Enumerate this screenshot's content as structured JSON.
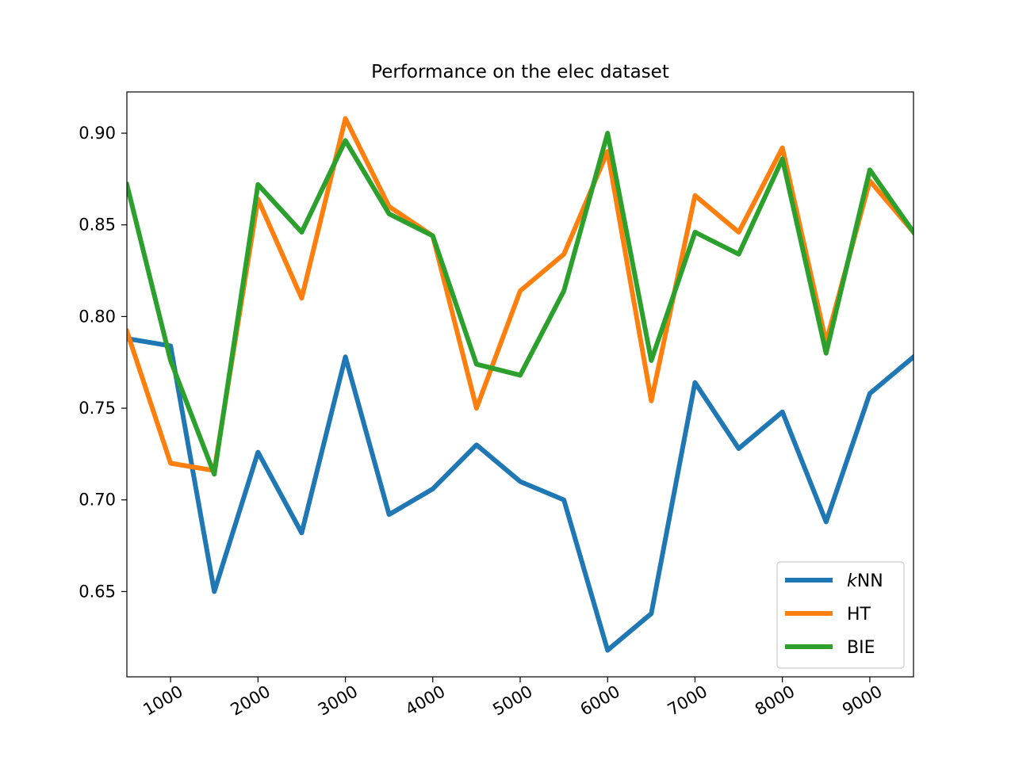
{
  "chart_data": {
    "type": "line",
    "title": "Performance on the elec dataset",
    "xlabel": "",
    "ylabel": "",
    "xlim": [
      500,
      9500
    ],
    "ylim": [
      0.6035,
      0.9225
    ],
    "x_ticks": [
      1000,
      2000,
      3000,
      4000,
      5000,
      6000,
      7000,
      8000,
      9000
    ],
    "x_tick_labels": [
      "1000",
      "2000",
      "3000",
      "4000",
      "5000",
      "6000",
      "7000",
      "8000",
      "9000"
    ],
    "y_ticks": [
      0.65,
      0.7,
      0.75,
      0.8,
      0.85,
      0.9
    ],
    "y_tick_labels": [
      "0.65",
      "0.70",
      "0.75",
      "0.80",
      "0.85",
      "0.90"
    ],
    "grid": false,
    "legend_position": "lower-right",
    "x": [
      500,
      1000,
      1500,
      2000,
      2500,
      3000,
      3500,
      4000,
      4500,
      5000,
      5500,
      6000,
      6500,
      7000,
      7500,
      8000,
      8500,
      9000,
      9500
    ],
    "series": [
      {
        "name": "kNN",
        "name_prefix": "k",
        "name_suffix": "NN",
        "color": "#1f77b4",
        "values": [
          0.788,
          0.784,
          0.65,
          0.726,
          0.682,
          0.778,
          0.692,
          0.706,
          0.73,
          0.71,
          0.7,
          0.618,
          0.638,
          0.764,
          0.728,
          0.748,
          0.688,
          0.758,
          0.778
        ]
      },
      {
        "name": "HT",
        "color": "#ff7f0e",
        "values": [
          0.792,
          0.72,
          0.716,
          0.864,
          0.81,
          0.908,
          0.86,
          0.844,
          0.75,
          0.814,
          0.834,
          0.89,
          0.754,
          0.866,
          0.846,
          0.892,
          0.786,
          0.874,
          0.846
        ]
      },
      {
        "name": "BIE",
        "color": "#2ca02c",
        "values": [
          0.872,
          0.776,
          0.714,
          0.872,
          0.846,
          0.896,
          0.856,
          0.844,
          0.774,
          0.768,
          0.814,
          0.9,
          0.776,
          0.846,
          0.834,
          0.886,
          0.78,
          0.88,
          0.846
        ]
      }
    ]
  }
}
